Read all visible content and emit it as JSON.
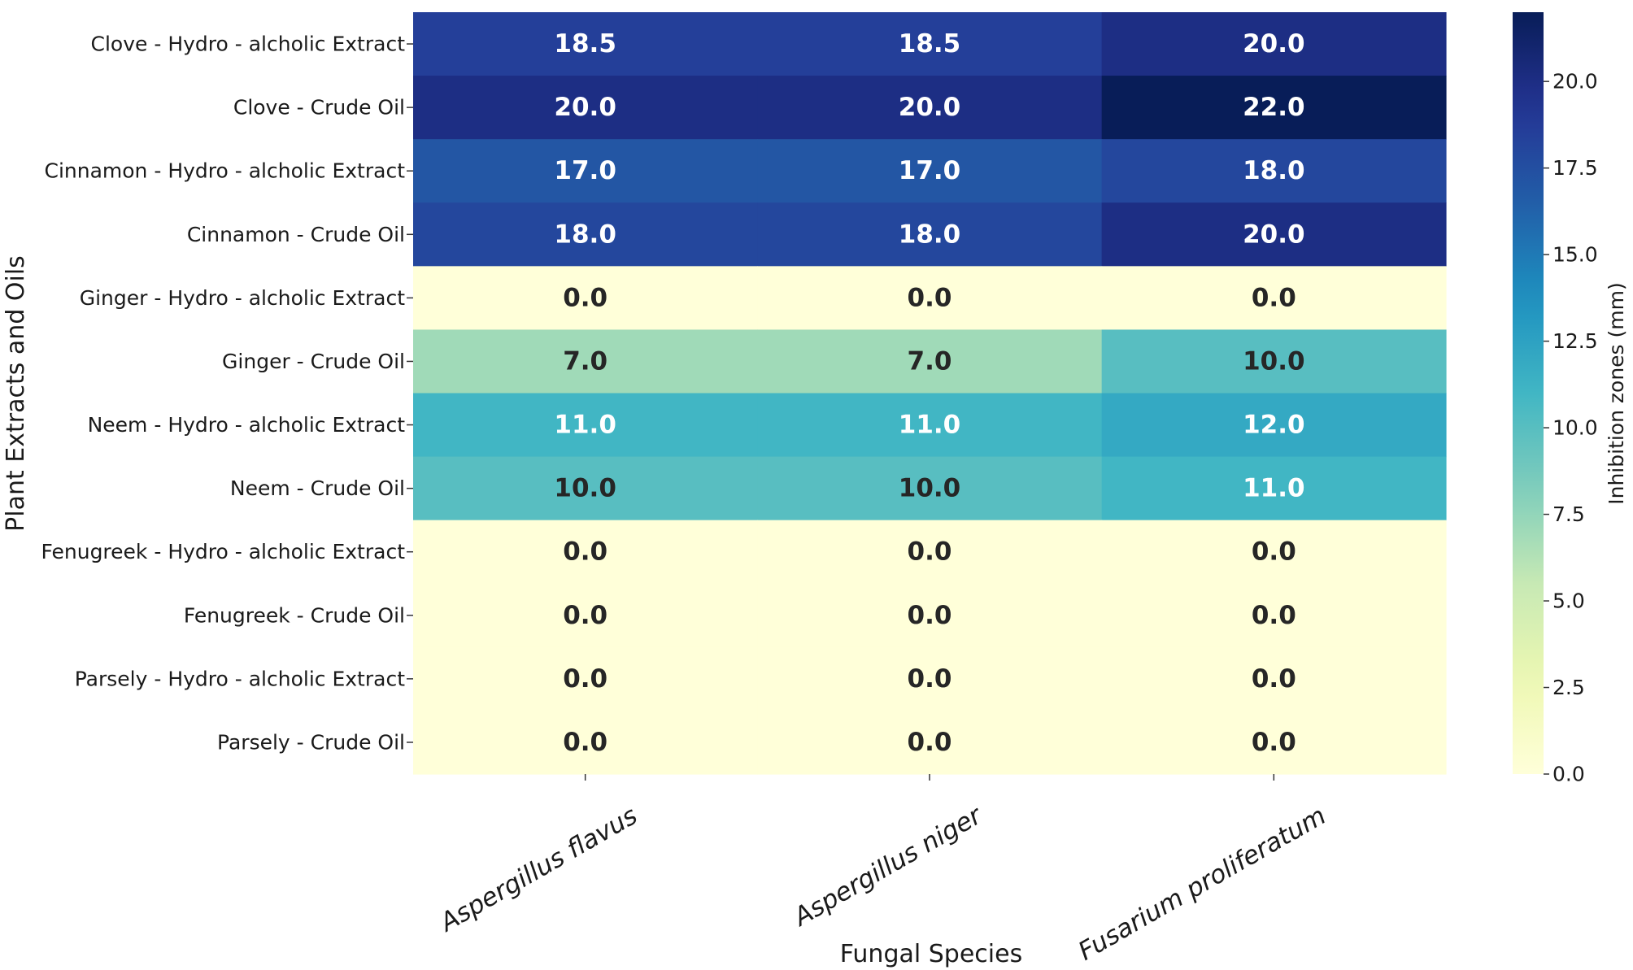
{
  "chart_data": {
    "type": "heatmap",
    "title": "",
    "xlabel": "Fungal Species",
    "ylabel": "Plant Extracts and Oils",
    "colorbar_label": "Inhibition zones (mm)",
    "colormap": "YlGnBu",
    "vmin": 0.0,
    "vmax": 22.0,
    "value_format": "0.0",
    "columns": [
      "Aspergillus flavus",
      "Aspergillus niger",
      "Fusarium proliferatum"
    ],
    "rows": [
      "Clove - Hydro - alcholic Extract",
      "Clove - Crude Oil",
      "Cinnamon - Hydro - alcholic Extract",
      "Cinnamon - Crude Oil",
      "Ginger - Hydro - alcholic Extract",
      "Ginger - Crude Oil",
      "Neem - Hydro - alcholic Extract",
      "Neem - Crude Oil",
      "Fenugreek - Hydro - alcholic Extract",
      "Fenugreek - Crude Oil",
      "Parsely - Hydro - alcholic Extract",
      "Parsely - Crude Oil"
    ],
    "values": [
      [
        18.5,
        18.5,
        20.0
      ],
      [
        20.0,
        20.0,
        22.0
      ],
      [
        17.0,
        17.0,
        18.0
      ],
      [
        18.0,
        18.0,
        20.0
      ],
      [
        0.0,
        0.0,
        0.0
      ],
      [
        7.0,
        7.0,
        10.0
      ],
      [
        11.0,
        11.0,
        12.0
      ],
      [
        10.0,
        10.0,
        11.0
      ],
      [
        0.0,
        0.0,
        0.0
      ],
      [
        0.0,
        0.0,
        0.0
      ],
      [
        0.0,
        0.0,
        0.0
      ],
      [
        0.0,
        0.0,
        0.0
      ]
    ],
    "colorbar_ticks": [
      "0.0",
      "2.5",
      "5.0",
      "7.5",
      "10.0",
      "12.5",
      "15.0",
      "17.5",
      "20.0"
    ]
  }
}
